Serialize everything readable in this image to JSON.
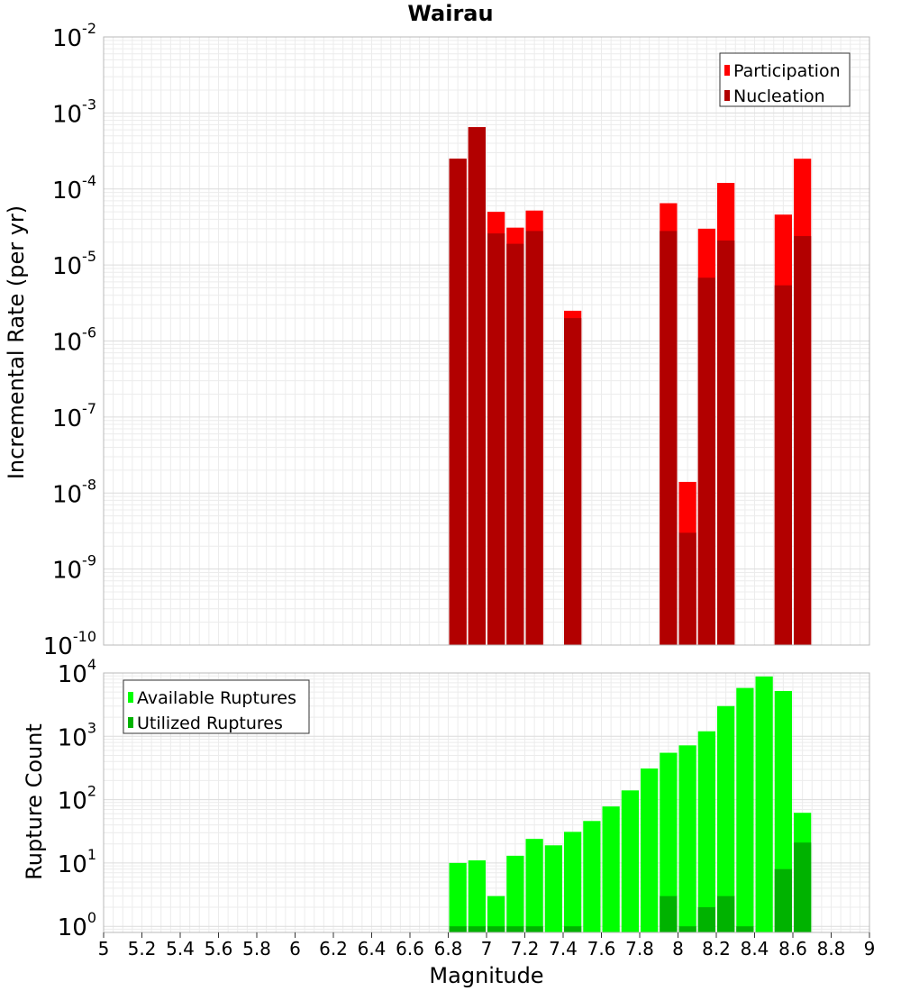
{
  "chart_data": [
    {
      "type": "bar",
      "title": "Wairau",
      "xlabel": "",
      "ylabel": "Incremental Rate (per yr)",
      "yscale": "log",
      "ylim": [
        1e-10,
        0.01
      ],
      "xlim": [
        5,
        9
      ],
      "y_tick_labels": [
        {
          "base": "10",
          "exp": "-2"
        },
        {
          "base": "10",
          "exp": "-3"
        },
        {
          "base": "10",
          "exp": "-4"
        },
        {
          "base": "10",
          "exp": "-5"
        },
        {
          "base": "10",
          "exp": "-6"
        },
        {
          "base": "10",
          "exp": "-7"
        },
        {
          "base": "10",
          "exp": "-8"
        },
        {
          "base": "10",
          "exp": "-9"
        },
        {
          "base": "10",
          "exp": "-10"
        }
      ],
      "legend": {
        "position": "top-right",
        "entries": [
          {
            "label": "Participation",
            "color": "#ff0000"
          },
          {
            "label": "Nucleation",
            "color": "#b20000"
          }
        ]
      },
      "x": [
        6.85,
        6.95,
        7.05,
        7.15,
        7.25,
        7.45,
        7.95,
        8.05,
        8.15,
        8.25,
        8.55,
        8.65
      ],
      "series": [
        {
          "name": "Participation",
          "color": "#ff0000",
          "values": [
            0.00025,
            0.00065,
            5e-05,
            3.1e-05,
            5.2e-05,
            2.5e-06,
            6.5e-05,
            1.4e-08,
            3e-05,
            0.00012,
            4.6e-05,
            0.00025
          ]
        },
        {
          "name": "Nucleation",
          "color": "#b20000",
          "values": [
            0.00025,
            0.00065,
            2.6e-05,
            1.9e-05,
            2.8e-05,
            2e-06,
            2.8e-05,
            3e-09,
            6.8e-06,
            2.1e-05,
            5.4e-06,
            2.4e-05
          ]
        }
      ]
    },
    {
      "type": "bar",
      "title": "",
      "xlabel": "Magnitude",
      "ylabel": "Rupture Count",
      "yscale": "log",
      "ylim": [
        0.8,
        10000
      ],
      "xlim": [
        5,
        9
      ],
      "x_tick_labels": [
        "5",
        "5.2",
        "5.4",
        "5.6",
        "5.8",
        "6",
        "6.2",
        "6.4",
        "6.6",
        "6.8",
        "7",
        "7.2",
        "7.4",
        "7.6",
        "7.8",
        "8",
        "8.2",
        "8.4",
        "8.6",
        "8.8",
        "9"
      ],
      "y_tick_labels": [
        {
          "base": "10",
          "exp": "4"
        },
        {
          "base": "10",
          "exp": "3"
        },
        {
          "base": "10",
          "exp": "2"
        },
        {
          "base": "10",
          "exp": "1"
        },
        {
          "base": "10",
          "exp": "0"
        }
      ],
      "legend": {
        "position": "top-left",
        "entries": [
          {
            "label": "Available Ruptures",
            "color": "#00ff00"
          },
          {
            "label": "Utilized Ruptures",
            "color": "#00b200"
          }
        ]
      },
      "x": [
        6.85,
        6.95,
        7.05,
        7.15,
        7.25,
        7.35,
        7.45,
        7.55,
        7.65,
        7.75,
        7.85,
        7.95,
        8.05,
        8.15,
        8.25,
        8.35,
        8.45,
        8.55,
        8.65
      ],
      "series": [
        {
          "name": "Available Ruptures",
          "color": "#00ff00",
          "values": [
            10,
            11,
            3,
            13,
            24,
            19,
            31,
            46,
            78,
            140,
            310,
            550,
            720,
            1200,
            3000,
            5800,
            8800,
            5200,
            62
          ]
        },
        {
          "name": "Utilized Ruptures",
          "color": "#00b200",
          "values": [
            1,
            1,
            1,
            1,
            1,
            0,
            1,
            0,
            0,
            0,
            0,
            3,
            1,
            2,
            3,
            1,
            0,
            8,
            21
          ]
        }
      ]
    }
  ]
}
